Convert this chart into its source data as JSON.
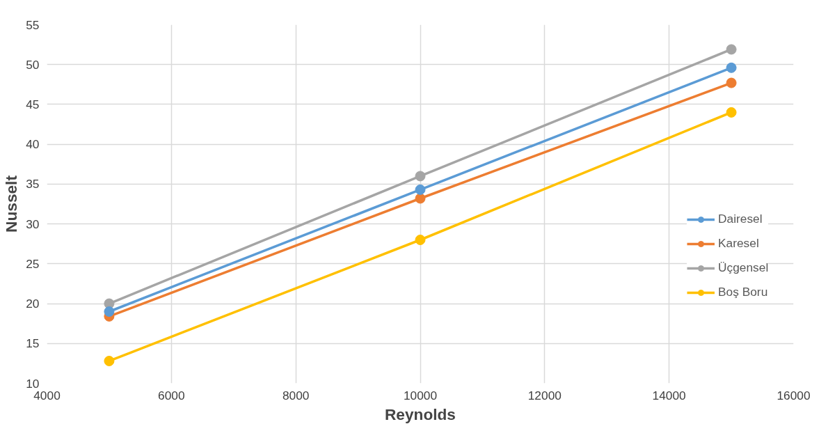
{
  "chart_data": {
    "type": "line",
    "xlabel": "Reynolds",
    "ylabel": "Nusselt",
    "x": [
      5000,
      10000,
      15000
    ],
    "series": [
      {
        "name": "Dairesel",
        "color": "#5b9bd5",
        "values": [
          19.0,
          34.3,
          49.6
        ]
      },
      {
        "name": "Karesel",
        "color": "#ed7d31",
        "values": [
          18.4,
          33.2,
          47.7
        ]
      },
      {
        "name": "Üçgensel",
        "color": "#a5a5a5",
        "values": [
          20.0,
          36.0,
          51.9
        ]
      },
      {
        "name": "Boş Boru",
        "color": "#ffc000",
        "values": [
          12.8,
          28.0,
          44.0
        ]
      }
    ],
    "xlim": [
      4000,
      16000
    ],
    "xticks": [
      4000,
      6000,
      8000,
      10000,
      12000,
      14000,
      16000
    ],
    "ylim": [
      10,
      55
    ],
    "yticks": [
      10,
      15,
      20,
      25,
      30,
      35,
      40,
      45,
      50,
      55
    ],
    "grid": true,
    "legend": "right",
    "marker": "circle",
    "line_style": "solid"
  }
}
